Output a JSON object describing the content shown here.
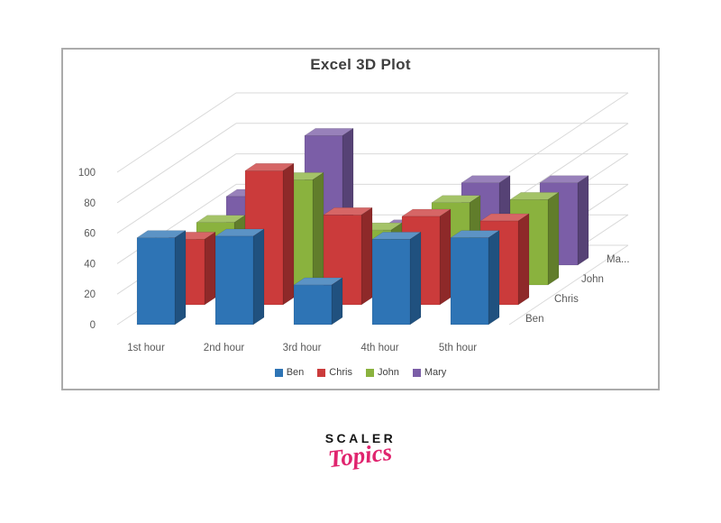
{
  "chart": {
    "frame_border_color": "#ababab",
    "background": "#ffffff"
  },
  "chart_data": {
    "type": "bar",
    "subtype": "3d-column",
    "title": "Excel 3D Plot",
    "title_color": "#3f3f3f",
    "categories": [
      "1st hour",
      "2nd hour",
      "3rd hour",
      "4th hour",
      "5th hour"
    ],
    "series": [
      {
        "name": "Ben",
        "color": "#2e74b5",
        "values": [
          57,
          58,
          26,
          56,
          57
        ]
      },
      {
        "name": "Chris",
        "color": "#cb3b3b",
        "values": [
          43,
          88,
          59,
          58,
          55
        ]
      },
      {
        "name": "John",
        "color": "#8ab23e",
        "values": [
          41,
          69,
          36,
          54,
          56
        ]
      },
      {
        "name": "Mary",
        "color": "#7b5ea7",
        "values": [
          45,
          85,
          25,
          54,
          54
        ]
      }
    ],
    "xlabel": "",
    "ylabel": "",
    "ylim": [
      0,
      100
    ],
    "yticks": [
      0,
      20,
      40,
      60,
      80,
      100
    ],
    "depth_axis_labels": [
      "Ben",
      "Chris",
      "John",
      "Ma..."
    ],
    "legend": {
      "position": "bottom",
      "items": [
        "Ben",
        "Chris",
        "John",
        "Mary"
      ]
    },
    "grid": true,
    "gridline_color": "#d9d9d9",
    "axis_text_color": "#595959"
  },
  "logo": {
    "brand": "SCALER",
    "sub": "Topics",
    "brand_color": "#141414",
    "sub_color": "#e0246e"
  }
}
